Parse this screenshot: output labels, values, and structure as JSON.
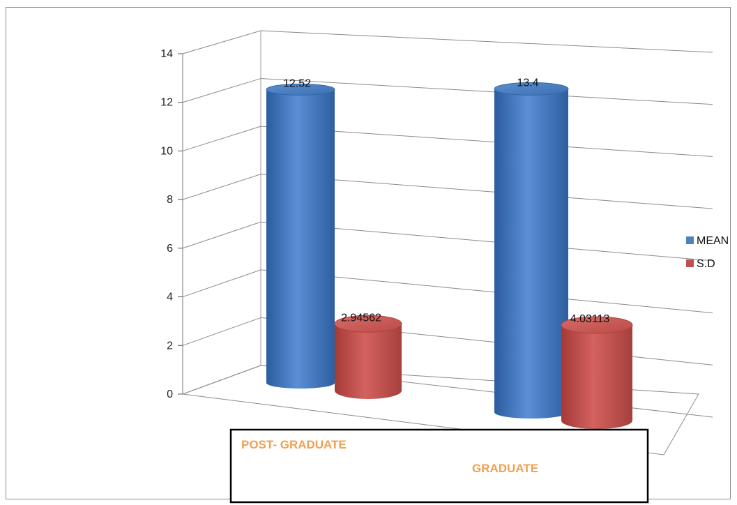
{
  "chart_data": {
    "type": "bar",
    "style": "3d-cylinder",
    "categories": [
      "POST- GRADUATE",
      "GRADUATE"
    ],
    "series": [
      {
        "name": "MEAN",
        "values": [
          12.52,
          13.4
        ],
        "labels": [
          "12.52",
          "13.4"
        ],
        "color": "#4f81bd"
      },
      {
        "name": "S.D",
        "values": [
          2.94562,
          4.03113
        ],
        "labels": [
          "2.94562",
          "4.03113"
        ],
        "color": "#c0504d"
      }
    ],
    "yticks": [
      "0",
      "2",
      "4",
      "6",
      "8",
      "10",
      "12",
      "14"
    ],
    "ylim": [
      0,
      14
    ],
    "grid": true,
    "legend_position": "right",
    "category_label_color": "#f79646"
  }
}
